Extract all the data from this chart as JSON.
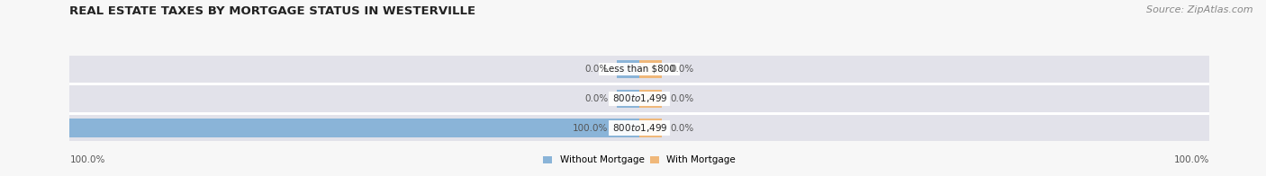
{
  "title": "REAL ESTATE TAXES BY MORTGAGE STATUS IN WESTERVILLE",
  "source_text": "Source: ZipAtlas.com",
  "categories": [
    "Less than $800",
    "$800 to $1,499",
    "$800 to $1,499"
  ],
  "without_mortgage": [
    0.0,
    0.0,
    100.0
  ],
  "with_mortgage": [
    0.0,
    0.0,
    0.0
  ],
  "color_without": "#8ab4d8",
  "color_with": "#f0b87a",
  "bar_bg_color": "#e2e2ea",
  "bar_height": 0.62,
  "xlim_left": -100,
  "xlim_right": 100,
  "legend_without": "Without Mortgage",
  "legend_with": "With Mortgage",
  "title_fontsize": 9.5,
  "source_fontsize": 8,
  "label_fontsize": 7.5,
  "cat_fontsize": 7.5,
  "background_color": "#f7f7f7",
  "bar_bg_outer_color": "#d8d8e0",
  "row_sep_color": "#ffffff",
  "label_color": "#555555",
  "title_color": "#222222"
}
